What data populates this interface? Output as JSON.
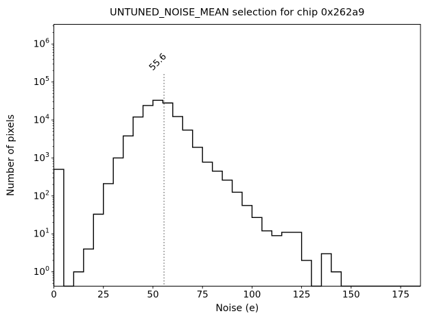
{
  "chart_data": {
    "type": "histogram",
    "title": "UNTUNED_NOISE_MEAN selection for chip 0x262a9",
    "xlabel": "Noise (e)",
    "ylabel": "Number of pixels",
    "yscale": "log",
    "grid": false,
    "legend": "none",
    "bin_start": 0,
    "bin_width": 5,
    "counts": [
      500,
      0,
      1,
      4,
      33,
      210,
      1000,
      3800,
      12000,
      24000,
      33000,
      28000,
      12300,
      5400,
      1900,
      775,
      450,
      260,
      125,
      56,
      27,
      12,
      9,
      11,
      11,
      2,
      0,
      3,
      1,
      0,
      0,
      0,
      0,
      0,
      0,
      0,
      0
    ],
    "xlim": [
      0,
      185
    ],
    "ylim": [
      0.42,
      3300000
    ],
    "xticks": [
      0,
      25,
      50,
      75,
      100,
      125,
      150,
      175
    ],
    "ytick_exponents": [
      0,
      1,
      2,
      3,
      4,
      5,
      6
    ],
    "annotation": {
      "label": "55.6",
      "x": 55.6,
      "style": "dotted-vertical-line",
      "rotation": -45,
      "color": "#8c8c8c"
    },
    "line_color": "#000000",
    "background_color": "#ffffff"
  }
}
